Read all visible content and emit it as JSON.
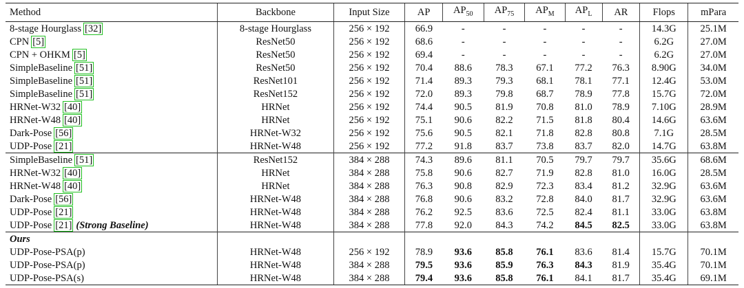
{
  "table": {
    "columns": [
      {
        "text": "Method"
      },
      {
        "text": "Backbone"
      },
      {
        "text": "Input Size"
      },
      {
        "text": "AP"
      },
      {
        "text": "AP",
        "sub": "50"
      },
      {
        "text": "AP",
        "sub": "75"
      },
      {
        "text": "AP",
        "sub": "M"
      },
      {
        "text": "AP",
        "sub": "L"
      },
      {
        "text": "AR"
      },
      {
        "text": "Flops"
      },
      {
        "text": "mPara"
      }
    ],
    "groups": [
      {
        "rows": [
          {
            "method": "8-stage Hourglass",
            "ref": "[32]",
            "cells": [
              "8-stage Hourglass",
              "256 × 192",
              "66.9",
              "-",
              "-",
              "-",
              "-",
              "-",
              "14.3G",
              "25.1M"
            ]
          },
          {
            "method": "CPN",
            "ref": "[5]",
            "cells": [
              "ResNet50",
              "256 × 192",
              "68.6",
              "-",
              "-",
              "-",
              "-",
              "-",
              "6.2G",
              "27.0M"
            ]
          },
          {
            "method": "CPN + OHKM",
            "ref": "[5]",
            "cells": [
              "ResNet50",
              "256 × 192",
              "69.4",
              "-",
              "-",
              "-",
              "-",
              "-",
              "6.2G",
              "27.0M"
            ]
          },
          {
            "method": "SimpleBaseline",
            "ref": "[51]",
            "cells": [
              "ResNet50",
              "256 × 192",
              "70.4",
              "88.6",
              "78.3",
              "67.1",
              "77.2",
              "76.3",
              "8.90G",
              "34.0M"
            ]
          },
          {
            "method": "SimpleBaseline",
            "ref": "[51]",
            "cells": [
              "ResNet101",
              "256 × 192",
              "71.4",
              "89.3",
              "79.3",
              "68.1",
              "78.1",
              "77.1",
              "12.4G",
              "53.0M"
            ]
          },
          {
            "method": "SimpleBaseline",
            "ref": "[51]",
            "cells": [
              "ResNet152",
              "256 × 192",
              "72.0",
              "89.3",
              "79.8",
              "68.7",
              "78.9",
              "77.8",
              "15.7G",
              "72.0M"
            ]
          },
          {
            "method": "HRNet-W32",
            "ref": "[40]",
            "cells": [
              "HRNet",
              "256 × 192",
              "74.4",
              "90.5",
              "81.9",
              "70.8",
              "81.0",
              "78.9",
              "7.10G",
              "28.9M"
            ]
          },
          {
            "method": "HRNet-W48",
            "ref": "[40]",
            "cells": [
              "HRNet",
              "256 × 192",
              "75.1",
              "90.6",
              "82.2",
              "71.5",
              "81.8",
              "80.4",
              "14.6G",
              "63.6M"
            ]
          },
          {
            "method": "Dark-Pose",
            "ref": "[56]",
            "cells": [
              "HRNet-W32",
              "256 × 192",
              "75.6",
              "90.5",
              "82.1",
              "71.8",
              "82.8",
              "80.8",
              "7.1G",
              "28.5M"
            ]
          },
          {
            "method": "UDP-Pose",
            "ref": "[21]",
            "cells": [
              "HRNet-W48",
              "256 × 192",
              "77.2",
              "91.8",
              "83.7",
              "73.8",
              "83.7",
              "82.0",
              "14.7G",
              "63.8M"
            ]
          }
        ]
      },
      {
        "rows": [
          {
            "method": "SimpleBaseline",
            "ref": "[51]",
            "cells": [
              "ResNet152",
              "384 × 288",
              "74.3",
              "89.6",
              "81.1",
              "70.5",
              "79.7",
              "79.7",
              "35.6G",
              "68.6M"
            ]
          },
          {
            "method": "HRNet-W32",
            "ref": "[40]",
            "cells": [
              "HRNet",
              "384 × 288",
              "75.8",
              "90.6",
              "82.7",
              "71.9",
              "82.8",
              "81.0",
              "16.0G",
              "28.5M"
            ]
          },
          {
            "method": "HRNet-W48",
            "ref": "[40]",
            "cells": [
              "HRNet",
              "384 × 288",
              "76.3",
              "90.8",
              "82.9",
              "72.3",
              "83.4",
              "81.2",
              "32.9G",
              "63.6M"
            ]
          },
          {
            "method": "Dark-Pose",
            "ref": "[56]",
            "cells": [
              "HRNet-W48",
              "384 × 288",
              "76.8",
              "90.6",
              "83.2",
              "72.8",
              "84.0",
              "81.7",
              "32.9G",
              "63.6M"
            ]
          },
          {
            "method": "UDP-Pose",
            "ref": "[21]",
            "cells": [
              "HRNet-W48",
              "384 × 288",
              "76.2",
              "92.5",
              "83.6",
              "72.5",
              "82.4",
              "81.1",
              "33.0G",
              "63.8M"
            ]
          },
          {
            "method": "UDP-Pose",
            "ref": "[21]",
            "suffix": "(Strong Baseline)",
            "cells": [
              "HRNet-W48",
              "384 × 288",
              "77.8",
              "92.0",
              "84.3",
              "74.2",
              "84.5",
              "82.5",
              "33.0G",
              "63.8M"
            ],
            "bold": [
              6,
              7
            ]
          }
        ]
      },
      {
        "label": "Ours",
        "rows": [
          {
            "method": "UDP-Pose-PSA(p)",
            "cells": [
              "HRNet-W48",
              "256 × 192",
              "78.9",
              "93.6",
              "85.8",
              "76.1",
              "83.6",
              "81.4",
              "15.7G",
              "70.1M"
            ],
            "bold": [
              3,
              4,
              5
            ]
          },
          {
            "method": "UDP-Pose-PSA(p)",
            "cells": [
              "HRNet-W48",
              "384 × 288",
              "79.5",
              "93.6",
              "85.9",
              "76.3",
              "84.3",
              "81.9",
              "35.4G",
              "70.1M"
            ],
            "bold": [
              2,
              3,
              4,
              5,
              6
            ]
          },
          {
            "method": "UDP-Pose-PSA(s)",
            "cells": [
              "HRNet-W48",
              "384 × 288",
              "79.4",
              "93.6",
              "85.8",
              "76.1",
              "84.1",
              "81.7",
              "35.4G",
              "69.1M"
            ],
            "bold": [
              2,
              3,
              4,
              5
            ]
          }
        ]
      }
    ]
  }
}
